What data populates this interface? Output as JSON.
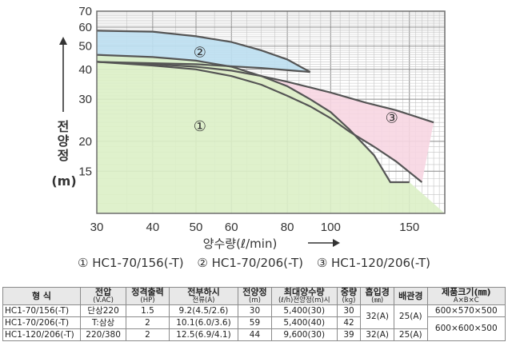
{
  "chart_data": {
    "type": "area",
    "xlabel": "양수량(ℓ/min)",
    "ylabel": [
      "전",
      "양",
      "정",
      "(m)"
    ],
    "xlim": [
      30,
      180
    ],
    "ylim": [
      10,
      70
    ],
    "x_scale": "log",
    "y_scale": "log",
    "x_ticks": [
      30,
      40,
      50,
      60,
      80,
      100,
      150
    ],
    "x_tick_labels": [
      "30",
      "40",
      "50",
      "60",
      "80",
      "100",
      "150"
    ],
    "y_ticks": [
      15,
      20,
      30,
      40,
      50,
      60,
      70
    ],
    "y_tick_labels": [
      "15",
      "20",
      "30",
      "40",
      "50",
      "60",
      "70"
    ],
    "grid": true,
    "series": [
      {
        "name": "③",
        "color": "#f7d6e2",
        "upper": [
          [
            30,
            43
          ],
          [
            40,
            42
          ],
          [
            50,
            41
          ],
          [
            60,
            39.5
          ],
          [
            70,
            37.5
          ],
          [
            80,
            35.5
          ],
          [
            100,
            32
          ],
          [
            120,
            29
          ],
          [
            140,
            27
          ],
          [
            170,
            24
          ]
        ],
        "lower": [
          [
            30,
            43
          ],
          [
            40,
            41.5
          ],
          [
            50,
            40
          ],
          [
            60,
            37.5
          ],
          [
            70,
            34.5
          ],
          [
            80,
            31
          ],
          [
            90,
            28
          ],
          [
            100,
            25
          ],
          [
            110,
            22
          ],
          [
            125,
            19
          ],
          [
            140,
            16.5
          ],
          [
            160,
            13.5
          ]
        ]
      },
      {
        "name": "②",
        "color": "#bddff1",
        "upper": [
          [
            30,
            58
          ],
          [
            40,
            57.5
          ],
          [
            50,
            55
          ],
          [
            60,
            52
          ],
          [
            70,
            48
          ],
          [
            80,
            44
          ],
          [
            90,
            39
          ]
        ],
        "lower": [
          [
            30,
            43
          ],
          [
            50,
            42
          ],
          [
            70,
            40.5
          ],
          [
            90,
            39
          ]
        ]
      },
      {
        "name": "①",
        "color": "#dcefc6",
        "upper": [
          [
            30,
            46
          ],
          [
            40,
            45
          ],
          [
            50,
            43.5
          ],
          [
            60,
            41
          ],
          [
            70,
            37.5
          ],
          [
            80,
            34
          ],
          [
            90,
            30
          ],
          [
            100,
            26.5
          ],
          [
            110,
            22.5
          ],
          [
            125,
            17.5
          ],
          [
            136,
            13.5
          ],
          [
            150,
            13.5
          ]
        ],
        "lower": []
      }
    ],
    "region_labels": [
      {
        "text": "②",
        "x": 51,
        "y": 47
      },
      {
        "text": "③",
        "x": 137,
        "y": 25
      },
      {
        "text": "①",
        "x": 51,
        "y": 23
      }
    ]
  },
  "legend": [
    "① HC1-70/156(-T)",
    "② HC1-70/206(-T)",
    "③ HC1-120/206(-T)"
  ],
  "table": {
    "headers": [
      {
        "main": "형 식",
        "sub": ""
      },
      {
        "main": "전압",
        "sub": "(V.AC)"
      },
      {
        "main": "정격출력",
        "sub": "(HP)"
      },
      {
        "main": "전부하시",
        "sub": "전류(A)"
      },
      {
        "main": "전양정",
        "sub": "(m)"
      },
      {
        "main": "최대양수량",
        "sub": "(ℓ/h)전양정(m)시"
      },
      {
        "main": "중량",
        "sub": "(kg)"
      },
      {
        "main": "흡입경",
        "sub": "(㎜)"
      },
      {
        "main": "배관경",
        "sub": ""
      },
      {
        "main": "제품크기(㎜)",
        "sub": "A×B×C"
      }
    ],
    "rows": [
      {
        "model": "HC1-70/156(-T)",
        "hp": "1.5",
        "current": "9.2(4.5/2.6)",
        "head": "30",
        "flow": "5,400(30)",
        "weight": "30",
        "size": "600×570×500"
      },
      {
        "model": "HC1-70/206(-T)",
        "hp": "2",
        "current": "10.1(6.0/3.6)",
        "head": "59",
        "flow": "5,400(40)",
        "weight": "42",
        "size": "600×600×500"
      },
      {
        "model": "HC1-120/206(-T)",
        "hp": "2",
        "current": "12.5(6.9/4.1)",
        "head": "44",
        "flow": "9,600(30)",
        "weight": "39",
        "size": ""
      }
    ],
    "voltage": [
      "단상220",
      "T:삼상",
      "220/380"
    ],
    "suction_1": "32(A)",
    "pipe_1": "25(A)",
    "suction_2": "32(A)",
    "pipe_2": "25(A)"
  }
}
